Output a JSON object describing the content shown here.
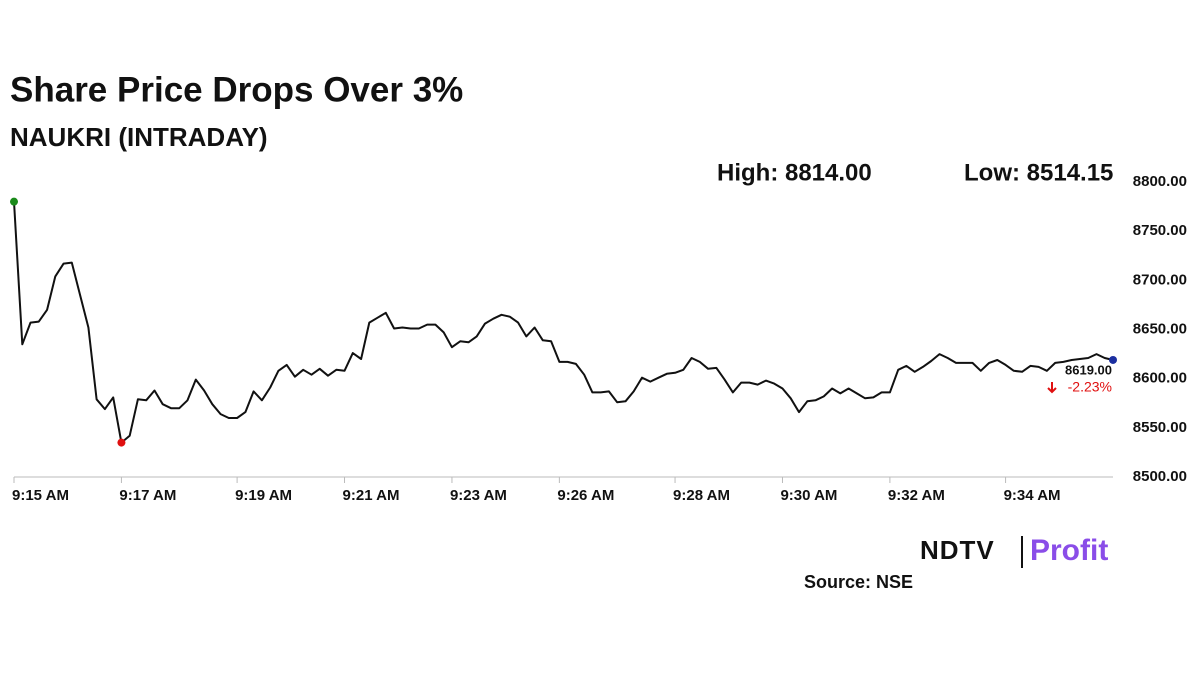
{
  "chart_data": {
    "type": "line",
    "title": "Share Price Drops Over 3%",
    "subtitle": "NAUKRI (INTRADAY)",
    "annotations": [
      "High: 8814.00",
      "Low: 8514.15"
    ],
    "change_label": "-2.23%",
    "source": "Source: NSE",
    "logo": [
      "NDTV",
      "Profit"
    ],
    "color": "#111111",
    "marker_colors": {
      "first": "#1a8a1a",
      "low": "#e01010",
      "last": "#1c2fa0"
    },
    "change_color": "#e01010",
    "categories": [
      "9:15 AM",
      null,
      null,
      null,
      null,
      null,
      null,
      null,
      null,
      null,
      null,
      null,
      null,
      "9:17 AM",
      null,
      null,
      null,
      null,
      null,
      null,
      null,
      null,
      null,
      null,
      null,
      null,
      null,
      "9:19 AM",
      null,
      null,
      null,
      null,
      null,
      null,
      null,
      null,
      null,
      null,
      null,
      null,
      "9:21 AM",
      null,
      null,
      null,
      null,
      null,
      null,
      null,
      null,
      null,
      null,
      null,
      null,
      "9:23 AM",
      null,
      null,
      null,
      null,
      null,
      null,
      null,
      null,
      null,
      null,
      null,
      null,
      "9:26 AM",
      null,
      null,
      null,
      null,
      null,
      null,
      null,
      null,
      null,
      null,
      null,
      null,
      null,
      "9:28 AM",
      null,
      null,
      null,
      null,
      null,
      null,
      null,
      null,
      null,
      null,
      null,
      null,
      "9:30 AM",
      null,
      null,
      null,
      null,
      null,
      null,
      null,
      null,
      null,
      null,
      null,
      null,
      "9:32 AM",
      null,
      null,
      null,
      null,
      null,
      null,
      null,
      null,
      null,
      null,
      null,
      null,
      null,
      "9:34 AM",
      null,
      null,
      null,
      null,
      null,
      null,
      null,
      null,
      null,
      null,
      null,
      null,
      null
    ],
    "values": [
      8780,
      8635,
      8657,
      8658,
      8670,
      8704,
      8717,
      8718,
      8685,
      8652,
      8579,
      8569,
      8581,
      8535,
      8542,
      8579,
      8578,
      8588,
      8574,
      8570,
      8570,
      8578,
      8599,
      8588,
      8574,
      8564,
      8560,
      8560,
      8566,
      8587,
      8578,
      8591,
      8608,
      8614,
      8602,
      8609,
      8604,
      8610,
      8603,
      8609,
      8608,
      8626,
      8620,
      8657,
      8662,
      8667,
      8651,
      8652,
      8651,
      8651,
      8655,
      8655,
      8647,
      8632,
      8638,
      8637,
      8643,
      8656,
      8661,
      8665,
      8663,
      8657,
      8643,
      8652,
      8639,
      8638,
      8617,
      8617,
      8615,
      8604,
      8586,
      8586,
      8587,
      8576,
      8577,
      8587,
      8601,
      8597,
      8601,
      8605,
      8606,
      8609,
      8621,
      8617,
      8610,
      8611,
      8599,
      8586,
      8596,
      8596,
      8594,
      8598,
      8595,
      8590,
      8580,
      8566,
      8577,
      8578,
      8582,
      8590,
      8585,
      8590,
      8585,
      8580,
      8581,
      8586,
      8586,
      8609,
      8613,
      8607,
      8612,
      8618,
      8625,
      8621,
      8616,
      8616,
      8616,
      8608,
      8616,
      8619,
      8614,
      8608,
      8607,
      8613,
      8612,
      8608,
      8616,
      8617,
      8619,
      8620,
      8621,
      8625,
      8621,
      8619
    ],
    "value_labels": [
      null,
      null,
      null,
      null,
      null,
      null,
      null,
      null,
      null,
      null,
      null,
      null,
      null,
      null,
      null,
      null,
      null,
      null,
      null,
      null,
      null,
      null,
      null,
      null,
      null,
      null,
      null,
      null,
      null,
      null,
      null,
      null,
      null,
      null,
      null,
      null,
      null,
      null,
      null,
      null,
      null,
      null,
      null,
      null,
      null,
      null,
      null,
      null,
      null,
      null,
      null,
      null,
      null,
      null,
      null,
      null,
      null,
      null,
      null,
      null,
      null,
      null,
      null,
      null,
      null,
      null,
      null,
      null,
      null,
      null,
      null,
      null,
      null,
      null,
      null,
      null,
      null,
      null,
      null,
      null,
      null,
      null,
      null,
      null,
      null,
      null,
      null,
      null,
      null,
      null,
      null,
      null,
      null,
      null,
      null,
      null,
      null,
      null,
      null,
      null,
      null,
      null,
      null,
      null,
      null,
      null,
      null,
      null,
      null,
      null,
      null,
      null,
      null,
      null,
      null,
      null,
      null,
      null,
      null,
      null,
      null,
      null,
      null,
      null,
      null,
      null,
      null,
      null,
      null,
      null,
      null,
      null,
      null,
      "8619.00"
    ],
    "ylim": [
      8500,
      8800
    ],
    "yticks": [
      {
        "value": 8500,
        "label": "8500.00"
      },
      {
        "value": 8550,
        "label": "8550.00"
      },
      {
        "value": 8600,
        "label": "8600.00"
      },
      {
        "value": 8650,
        "label": "8650.00"
      },
      {
        "value": 8700,
        "label": "8700.00"
      },
      {
        "value": 8750,
        "label": "8750.00"
      },
      {
        "value": 8800,
        "label": "8800.00"
      }
    ],
    "grid": false
  }
}
